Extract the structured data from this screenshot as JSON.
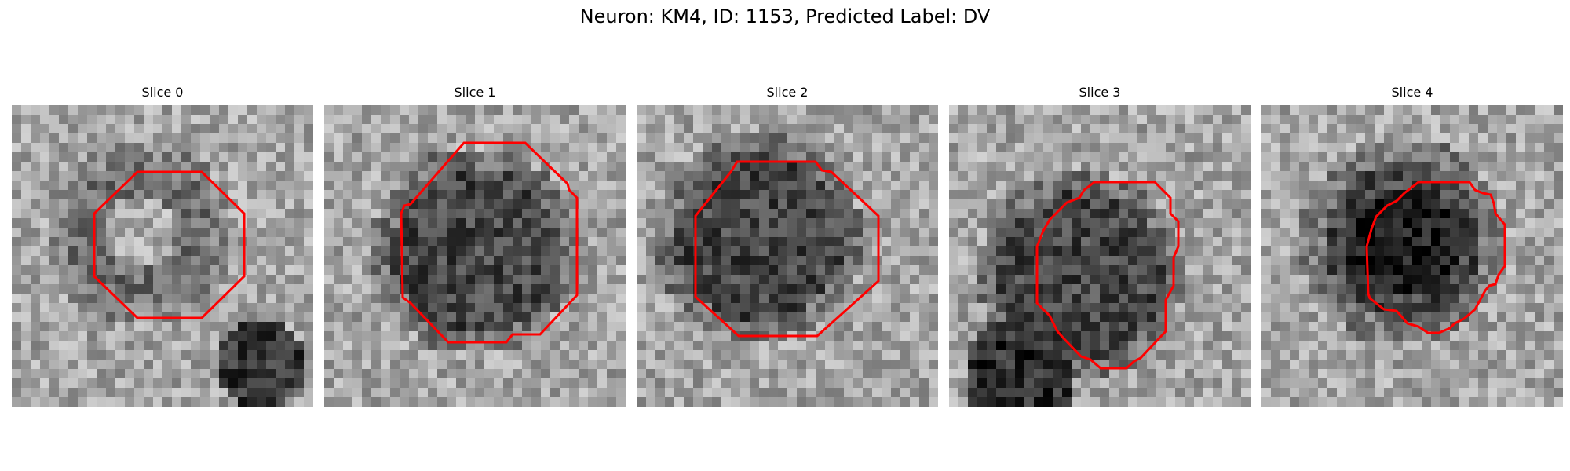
{
  "figure": {
    "title": "Neuron: KM4, ID: 1153, Predicted Label: DV",
    "contour_color": "#ff0000"
  },
  "panels": [
    {
      "title": "Slice 0",
      "core": "bright",
      "blob": "bottom-right"
    },
    {
      "title": "Slice 1",
      "core": "dark",
      "blob": "none"
    },
    {
      "title": "Slice 2",
      "core": "dark",
      "blob": "none"
    },
    {
      "title": "Slice 3",
      "core": "dark",
      "blob": "bottom-left"
    },
    {
      "title": "Slice 4",
      "core": "very-dark",
      "blob": "none"
    }
  ]
}
